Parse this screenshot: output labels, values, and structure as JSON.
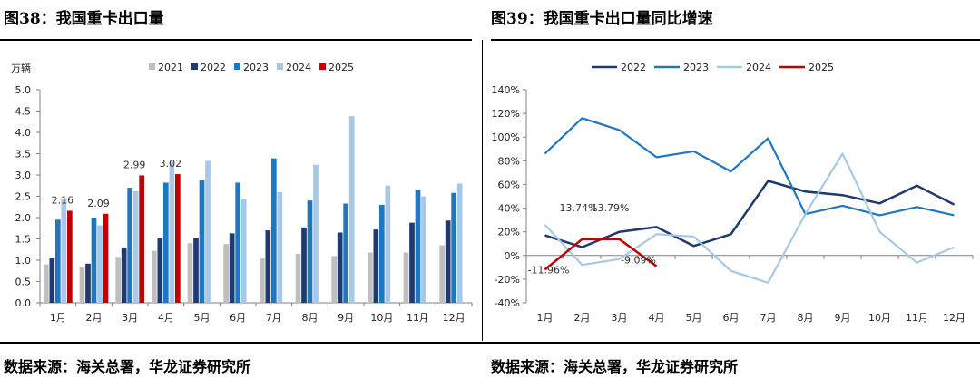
{
  "left_title": "图38：我国重卡出口量",
  "right_title": "图39：我国重卡出口量同比增速",
  "left_source": "数据来源：海关总署，华龙证券研究所",
  "right_source": "数据来源：海关总署，华龙证券研究所",
  "colors": {
    "2021": "#bfbfbf",
    "2022": "#1f3a70",
    "2023": "#1f77c0",
    "2024": "#a8c8e8",
    "2025": "#c00000",
    "axis": "#808080"
  },
  "chart_data": [
    {
      "type": "bar",
      "title": "我国重卡出口量",
      "ylabel": "万辆",
      "ylim": [
        0,
        5
      ],
      "yticks": [
        "0.0",
        "0.5",
        "1.0",
        "1.5",
        "2.0",
        "2.5",
        "3.0",
        "3.5",
        "4.0",
        "4.5",
        "5.0"
      ],
      "categories": [
        "1月",
        "2月",
        "3月",
        "4月",
        "5月",
        "6月",
        "7月",
        "8月",
        "9月",
        "10月",
        "11月",
        "12月"
      ],
      "series": [
        {
          "name": "2021",
          "values": [
            0.9,
            0.85,
            1.08,
            1.22,
            1.4,
            1.38,
            1.05,
            1.15,
            1.1,
            1.18,
            1.18,
            1.35
          ]
        },
        {
          "name": "2022",
          "values": [
            1.05,
            0.92,
            1.3,
            1.53,
            1.52,
            1.63,
            1.7,
            1.77,
            1.65,
            1.72,
            1.88,
            1.93
          ]
        },
        {
          "name": "2023",
          "values": [
            1.95,
            2.0,
            2.7,
            2.82,
            2.88,
            2.82,
            3.39,
            2.4,
            2.33,
            2.3,
            2.65,
            2.58
          ]
        },
        {
          "name": "2024",
          "values": [
            2.45,
            1.82,
            2.62,
            3.31,
            3.33,
            2.45,
            2.6,
            3.24,
            4.38,
            2.75,
            2.5,
            2.8
          ]
        },
        {
          "name": "2025",
          "values": [
            2.16,
            2.09,
            2.99,
            3.02,
            null,
            null,
            null,
            null,
            null,
            null,
            null,
            null
          ]
        }
      ],
      "data_labels": [
        {
          "series": "2025",
          "index": 0,
          "text": "2.16"
        },
        {
          "series": "2025",
          "index": 1,
          "text": "2.09"
        },
        {
          "series": "2025",
          "index": 2,
          "text": "2.99"
        },
        {
          "series": "2025",
          "index": 3,
          "text": "3.02"
        }
      ],
      "legend_position": "top"
    },
    {
      "type": "line",
      "title": "我国重卡出口量同比增速",
      "ylim": [
        -40,
        140
      ],
      "yticks": [
        "-40%",
        "-20%",
        "0%",
        "20%",
        "40%",
        "60%",
        "80%",
        "100%",
        "120%",
        "140%"
      ],
      "categories": [
        "1月",
        "2月",
        "3月",
        "4月",
        "5月",
        "6月",
        "7月",
        "8月",
        "9月",
        "10月",
        "11月",
        "12月"
      ],
      "series": [
        {
          "name": "2022",
          "values": [
            17,
            7,
            20,
            24,
            8,
            18,
            63,
            54,
            51,
            44,
            59,
            43
          ]
        },
        {
          "name": "2023",
          "values": [
            86,
            116,
            106,
            83,
            88,
            71,
            99,
            35,
            42,
            34,
            41,
            34
          ]
        },
        {
          "name": "2024",
          "values": [
            26,
            -8,
            -3,
            18,
            16,
            -13,
            -23,
            35,
            86,
            20,
            -6,
            7
          ]
        },
        {
          "name": "2025",
          "values": [
            -11.96,
            13.74,
            13.79,
            -9.09,
            null,
            null,
            null,
            null,
            null,
            null,
            null,
            null
          ]
        }
      ],
      "data_labels": [
        {
          "series": "2025",
          "index": 0,
          "text": "-11.96%"
        },
        {
          "series": "2025",
          "index": 1,
          "text": "13.74%"
        },
        {
          "series": "2025",
          "index": 2,
          "text": "13.79%"
        },
        {
          "series": "2025",
          "index": 3,
          "text": "-9.09%"
        }
      ],
      "legend_position": "top"
    }
  ]
}
